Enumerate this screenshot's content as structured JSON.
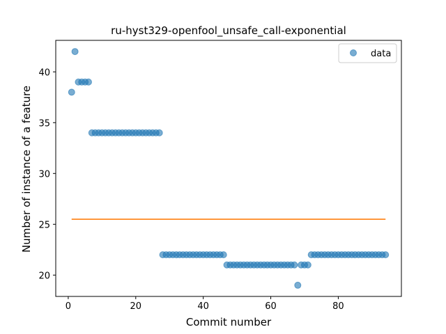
{
  "chart_data": {
    "type": "scatter",
    "title": "ru-hyst329-openfool_unsafe_call-exponential",
    "xlabel": "Commit number",
    "ylabel": "Number of instance of a feature",
    "xlim": [
      -3.7,
      98.7
    ],
    "ylim": [
      17.9,
      43.1
    ],
    "xticks": [
      0,
      20,
      40,
      60,
      80
    ],
    "yticks": [
      20,
      25,
      30,
      35,
      40
    ],
    "grid": false,
    "legend_position": "upper right",
    "colors": {
      "data": "#1f77b4",
      "fit": "#ff7f0e"
    },
    "series": [
      {
        "name": "data",
        "kind": "scatter",
        "x": [
          1,
          2,
          3,
          4,
          5,
          6,
          7,
          8,
          9,
          10,
          11,
          12,
          13,
          14,
          15,
          16,
          17,
          18,
          19,
          20,
          21,
          22,
          23,
          24,
          25,
          26,
          27,
          28,
          29,
          30,
          31,
          32,
          33,
          34,
          35,
          36,
          37,
          38,
          39,
          40,
          41,
          42,
          43,
          44,
          45,
          46,
          47,
          48,
          49,
          50,
          51,
          52,
          53,
          54,
          55,
          56,
          57,
          58,
          59,
          60,
          61,
          62,
          63,
          64,
          65,
          66,
          67,
          68,
          69,
          70,
          71,
          72,
          73,
          74,
          75,
          76,
          77,
          78,
          79,
          80,
          81,
          82,
          83,
          84,
          85,
          86,
          87,
          88,
          89,
          90,
          91,
          92,
          93,
          94
        ],
        "y": [
          38,
          42,
          39,
          39,
          39,
          39,
          34,
          34,
          34,
          34,
          34,
          34,
          34,
          34,
          34,
          34,
          34,
          34,
          34,
          34,
          34,
          34,
          34,
          34,
          34,
          34,
          34,
          22,
          22,
          22,
          22,
          22,
          22,
          22,
          22,
          22,
          22,
          22,
          22,
          22,
          22,
          22,
          22,
          22,
          22,
          22,
          21,
          21,
          21,
          21,
          21,
          21,
          21,
          21,
          21,
          21,
          21,
          21,
          21,
          21,
          21,
          21,
          21,
          21,
          21,
          21,
          21,
          19,
          21,
          21,
          21,
          22,
          22,
          22,
          22,
          22,
          22,
          22,
          22,
          22,
          22,
          22,
          22,
          22,
          22,
          22,
          22,
          22,
          22,
          22,
          22,
          22,
          22,
          22
        ]
      },
      {
        "kind": "line",
        "x": [
          1,
          94
        ],
        "y": [
          25.5,
          25.5
        ]
      }
    ],
    "legend": [
      {
        "label": "data"
      }
    ]
  }
}
